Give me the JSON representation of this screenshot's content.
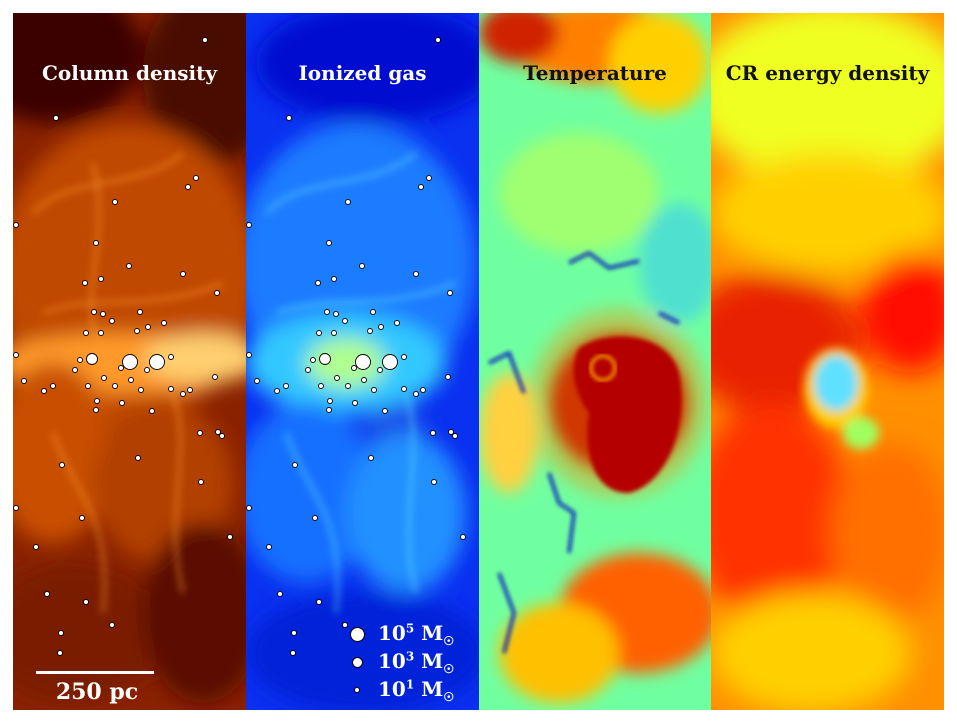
{
  "panels": [
    {
      "id": "column-density",
      "title": "Column density",
      "colormap": "orange-dark"
    },
    {
      "id": "ionized-gas",
      "title": "Ionized gas",
      "colormap": "blue-cyan"
    },
    {
      "id": "temperature",
      "title": "Temperature",
      "colormap": "jet"
    },
    {
      "id": "cr-energy-density",
      "title": "CR energy density",
      "colormap": "red-yellow"
    }
  ],
  "scale_bar": {
    "label": "250 pc"
  },
  "legend": {
    "items": [
      {
        "mantissa": "10",
        "exponent": "5",
        "unit": "M",
        "sun_symbol": "☉"
      },
      {
        "mantissa": "10",
        "exponent": "3",
        "unit": "M",
        "sun_symbol": "☉"
      },
      {
        "mantissa": "10",
        "exponent": "1",
        "unit": "M",
        "sun_symbol": "☉"
      }
    ]
  },
  "colors": {
    "column_density": [
      "#3a0600",
      "#8a2200",
      "#e26000",
      "#ffb640"
    ],
    "ionized_gas": [
      "#0018d8",
      "#0070ff",
      "#28c8ff",
      "#c8ff80"
    ],
    "temperature": [
      "#00007f",
      "#60ffa0",
      "#ffd000",
      "#b00000"
    ],
    "cr_energy": [
      "#e81000",
      "#ff8000",
      "#ffe000",
      "#60e0ff"
    ]
  }
}
